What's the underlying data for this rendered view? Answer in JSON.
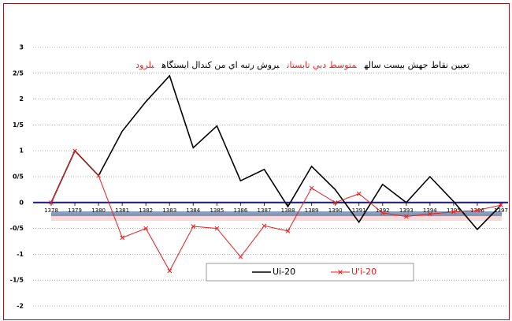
{
  "chart_data": {
    "type": "line",
    "title": [
      {
        "text": "تعيين نقاط جهش بيست ساله",
        "color": "#000000"
      },
      {
        "text": "متوسط دبي تابستان",
        "color": "#e8211c"
      },
      {
        "text": "بروش رتبه اي من كندال ايستگاه",
        "color": "#000000"
      },
      {
        "text": "بلرود",
        "color": "#e8211c"
      }
    ],
    "categories": [
      "1378",
      "1379",
      "1380",
      "1381",
      "1382",
      "1383",
      "1384",
      "1385",
      "1386",
      "1387",
      "1388",
      "1389",
      "1390",
      "1391",
      "1392",
      "1393",
      "1394",
      "1395",
      "1396",
      "1397"
    ],
    "series": [
      {
        "name": "Ui-20",
        "color": "#000000",
        "marker": "none",
        "values": [
          0,
          1.0,
          0.52,
          1.38,
          1.95,
          2.45,
          1.06,
          1.48,
          0.42,
          0.64,
          -0.08,
          0.7,
          0.25,
          -0.38,
          0.35,
          0.0,
          0.5,
          0.02,
          -0.52,
          -0.05
        ]
      },
      {
        "name": "U'i-20",
        "color": "#ee1c1c",
        "marker": "x",
        "values": [
          0,
          1.0,
          0.52,
          -0.68,
          -0.5,
          -1.32,
          -0.46,
          -0.5,
          -1.05,
          -0.45,
          -0.55,
          0.28,
          0.0,
          0.17,
          -0.2,
          -0.27,
          -0.22,
          -0.18,
          -0.15,
          -0.05
        ]
      }
    ],
    "ylim": [
      -2,
      3
    ],
    "yticks": [
      3,
      {
        "value": 2.5,
        "label": "2/5"
      },
      2,
      {
        "value": 1.5,
        "label": "1/5"
      },
      1,
      {
        "value": 0.5,
        "label": "0/5"
      },
      0,
      {
        "value": -0.5,
        "label": "-0/5"
      },
      -1,
      {
        "value": -1.5,
        "label": "-1/5"
      },
      -2
    ],
    "grid": true
  }
}
